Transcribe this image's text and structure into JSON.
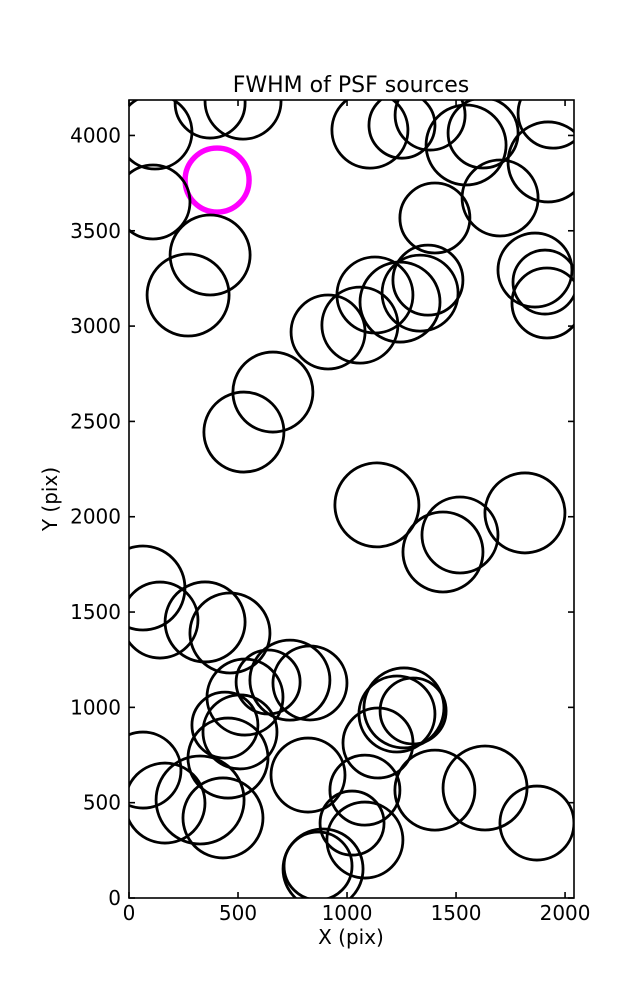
{
  "figure": {
    "background": "#ffffff"
  },
  "chart_data": {
    "type": "scatter",
    "title": "FWHM of PSF sources",
    "xlabel": "X (pix)",
    "ylabel": "Y (pix)",
    "xlim": [
      0,
      2041
    ],
    "ylim": [
      0,
      4186
    ],
    "xticks": [
      0,
      500,
      1000,
      1500,
      2000
    ],
    "yticks": [
      0,
      500,
      1000,
      1500,
      2000,
      2500,
      3000,
      3500,
      4000
    ],
    "grid": false,
    "legend": null,
    "marker": {
      "shape": "open-circle",
      "fill": "none",
      "default_color": "#000000",
      "highlight_color": "#ff00ff",
      "default_stroke_px": 2.8,
      "highlight_stroke_px": 5.4
    },
    "points": [
      {
        "x": 119,
        "y": 4018,
        "r": 37
      },
      {
        "x": 372,
        "y": 4170,
        "r": 35
      },
      {
        "x": 523,
        "y": 4180,
        "r": 38
      },
      {
        "x": 404,
        "y": 3766,
        "r": 32,
        "highlight": true
      },
      {
        "x": 1105,
        "y": 4028,
        "r": 38
      },
      {
        "x": 1252,
        "y": 4054,
        "r": 33
      },
      {
        "x": 1381,
        "y": 4107,
        "r": 35
      },
      {
        "x": 1546,
        "y": 3950,
        "r": 40
      },
      {
        "x": 1624,
        "y": 4013,
        "r": 35
      },
      {
        "x": 1945,
        "y": 4117,
        "r": 35
      },
      {
        "x": 1922,
        "y": 3861,
        "r": 40
      },
      {
        "x": 1702,
        "y": 3672,
        "r": 38
      },
      {
        "x": 1403,
        "y": 3567,
        "r": 35
      },
      {
        "x": 110,
        "y": 3651,
        "r": 37
      },
      {
        "x": 372,
        "y": 3373,
        "r": 40
      },
      {
        "x": 271,
        "y": 3163,
        "r": 41
      },
      {
        "x": 1128,
        "y": 3163,
        "r": 38
      },
      {
        "x": 1243,
        "y": 3126,
        "r": 40
      },
      {
        "x": 1335,
        "y": 3173,
        "r": 38
      },
      {
        "x": 1371,
        "y": 3241,
        "r": 35
      },
      {
        "x": 1059,
        "y": 3005,
        "r": 38
      },
      {
        "x": 913,
        "y": 2969,
        "r": 37
      },
      {
        "x": 1862,
        "y": 3294,
        "r": 37
      },
      {
        "x": 1908,
        "y": 3231,
        "r": 32
      },
      {
        "x": 1917,
        "y": 3121,
        "r": 35
      },
      {
        "x": 660,
        "y": 2654,
        "r": 40
      },
      {
        "x": 527,
        "y": 2444,
        "r": 40
      },
      {
        "x": 1137,
        "y": 2062,
        "r": 42
      },
      {
        "x": 1518,
        "y": 1904,
        "r": 38
      },
      {
        "x": 1440,
        "y": 1815,
        "r": 40
      },
      {
        "x": 1816,
        "y": 2020,
        "r": 40
      },
      {
        "x": 64,
        "y": 1626,
        "r": 42
      },
      {
        "x": 142,
        "y": 1458,
        "r": 38
      },
      {
        "x": 349,
        "y": 1448,
        "r": 40
      },
      {
        "x": 463,
        "y": 1390,
        "r": 40
      },
      {
        "x": 638,
        "y": 1133,
        "r": 32
      },
      {
        "x": 738,
        "y": 1143,
        "r": 40
      },
      {
        "x": 830,
        "y": 1128,
        "r": 37
      },
      {
        "x": 532,
        "y": 1054,
        "r": 38
      },
      {
        "x": 440,
        "y": 907,
        "r": 33
      },
      {
        "x": 509,
        "y": 871,
        "r": 37
      },
      {
        "x": 64,
        "y": 671,
        "r": 38
      },
      {
        "x": 165,
        "y": 498,
        "r": 40
      },
      {
        "x": 326,
        "y": 514,
        "r": 44
      },
      {
        "x": 454,
        "y": 734,
        "r": 40
      },
      {
        "x": 431,
        "y": 420,
        "r": 40
      },
      {
        "x": 821,
        "y": 645,
        "r": 37
      },
      {
        "x": 867,
        "y": 168,
        "r": 34
      },
      {
        "x": 890,
        "y": 152,
        "r": 40
      },
      {
        "x": 1023,
        "y": 393,
        "r": 32
      },
      {
        "x": 1261,
        "y": 997,
        "r": 40
      },
      {
        "x": 1229,
        "y": 965,
        "r": 38
      },
      {
        "x": 1303,
        "y": 981,
        "r": 33
      },
      {
        "x": 1142,
        "y": 813,
        "r": 35
      },
      {
        "x": 1082,
        "y": 566,
        "r": 35
      },
      {
        "x": 1403,
        "y": 566,
        "r": 40
      },
      {
        "x": 1633,
        "y": 577,
        "r": 42
      },
      {
        "x": 1871,
        "y": 393,
        "r": 37
      },
      {
        "x": 1082,
        "y": 304,
        "r": 38
      }
    ]
  }
}
